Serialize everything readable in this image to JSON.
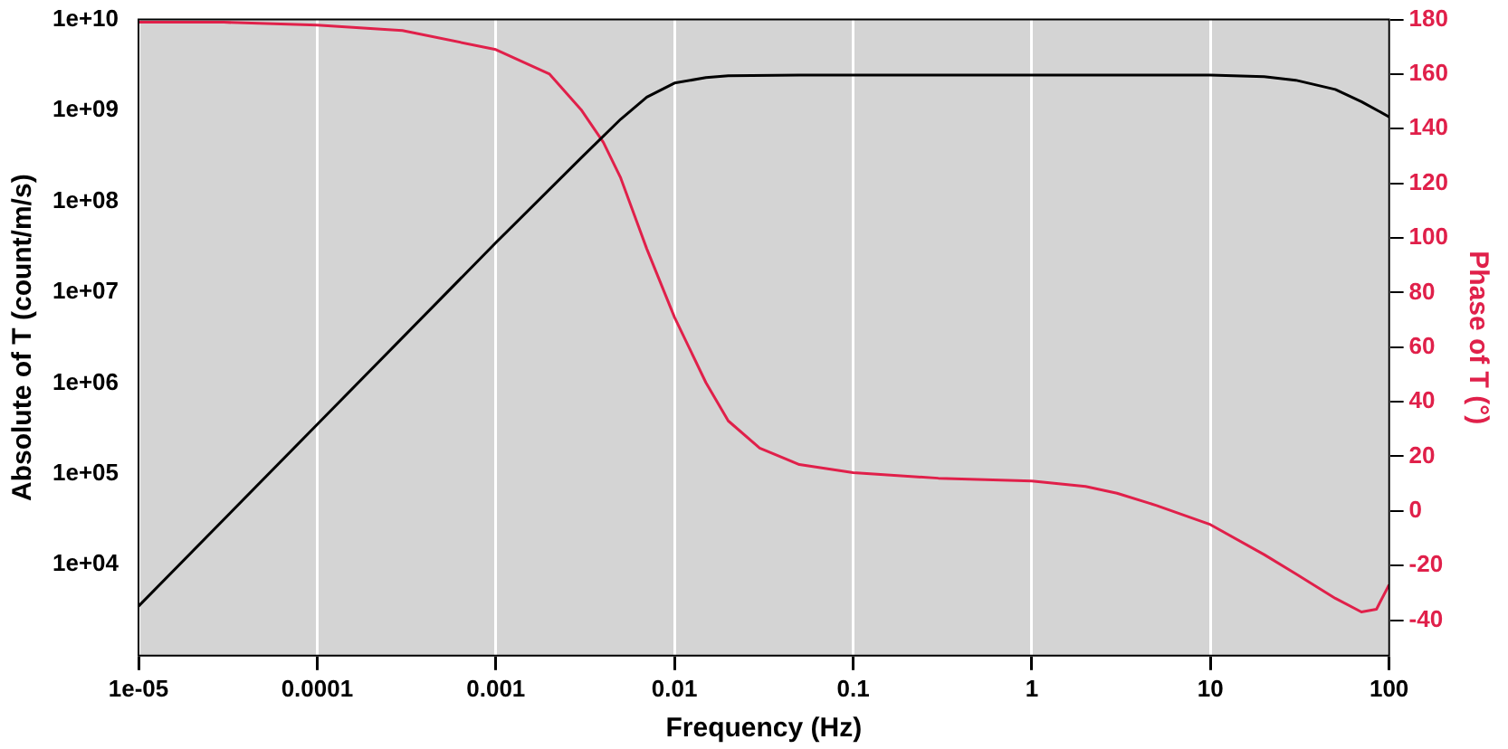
{
  "chart_data": {
    "type": "line",
    "xlabel": "Frequency (Hz)",
    "ylabel": "Absolute of T (count/m/s)",
    "y2label": "Phase of T (°)",
    "log": "xy",
    "grid": "x",
    "marker": "none",
    "line_style": "solid",
    "xlim": [
      1e-05,
      100
    ],
    "ylim": [
      1000,
      10000000000
    ],
    "y2lim": [
      -53,
      180
    ],
    "xticks": [
      {
        "value": 1e-05,
        "label": "1e-05"
      },
      0.0001,
      0.001,
      0.01,
      0.1,
      1,
      10,
      100
    ],
    "yticks": [
      {
        "value": 10000,
        "label": "1e+04"
      },
      {
        "value": 100000,
        "label": "1e+05"
      },
      {
        "value": 1000000,
        "label": "1e+06"
      },
      {
        "value": 10000000,
        "label": "1e+07"
      },
      {
        "value": 100000000,
        "label": "1e+08"
      },
      {
        "value": 1000000000,
        "label": "1e+09"
      },
      {
        "value": 10000000000,
        "label": "1e+10"
      }
    ],
    "y2ticks": [
      -40,
      -20,
      0,
      20,
      40,
      60,
      80,
      100,
      120,
      140,
      160,
      180
    ],
    "series": [
      {
        "color": "#000000",
        "x": [
          1e-05,
          0.0001,
          0.001,
          0.003,
          0.005,
          0.007,
          0.01,
          0.015,
          0.02,
          0.05,
          0.1,
          1,
          10,
          20,
          30,
          50,
          70,
          100
        ],
        "values": [
          3500,
          350000,
          35000000,
          300000000,
          800000000,
          1400000000,
          2000000000,
          2300000000,
          2400000000,
          2450000000,
          2450000000,
          2450000000,
          2450000000,
          2350000000,
          2150000000,
          1700000000,
          1250000000,
          850000000
        ]
      },
      {
        "color": "#e0204a",
        "axis": "y2",
        "x": [
          1e-05,
          3e-05,
          0.0001,
          0.0003,
          0.001,
          0.002,
          0.003,
          0.004,
          0.005,
          0.007,
          0.01,
          0.015,
          0.02,
          0.03,
          0.05,
          0.1,
          0.3,
          1,
          2,
          3,
          5,
          10,
          20,
          30,
          50,
          70,
          85,
          100
        ],
        "values": [
          179,
          179,
          178,
          176,
          169,
          160,
          147,
          135,
          122,
          96,
          71,
          47,
          33,
          23,
          17,
          14,
          12,
          11,
          9,
          6.5,
          2,
          -5,
          -16,
          -23,
          -32,
          -37,
          -36,
          -27
        ]
      }
    ]
  }
}
